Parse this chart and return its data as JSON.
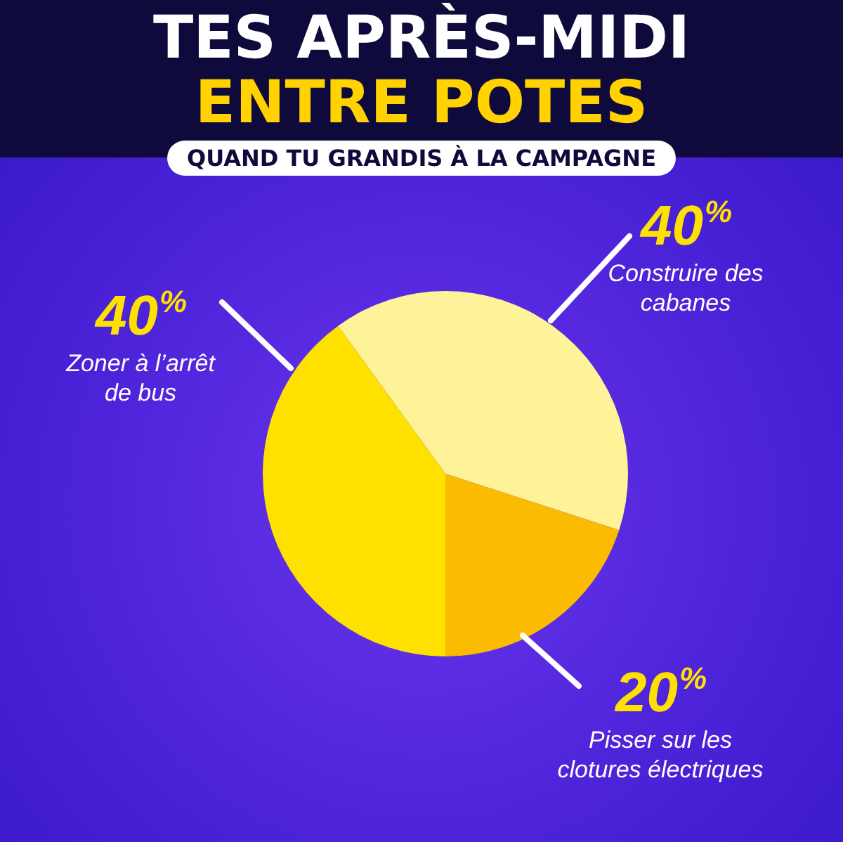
{
  "chart_data": {
    "type": "pie",
    "title": "TES APRÈS-MIDI\nENTRE POTES",
    "subtitle": "QUAND TU GRANDIS À LA CAMPAGNE",
    "categories": [
      "Construire des cabanes",
      "Pisser sur les clotures électriques",
      "Zoner à l’arrêt de bus"
    ],
    "values": [
      40,
      20,
      40
    ],
    "colors": [
      "#fef398",
      "#fbbb00",
      "#ffe100"
    ],
    "value_labels": [
      "40%",
      "20%",
      "40%"
    ],
    "legend": false
  }
}
